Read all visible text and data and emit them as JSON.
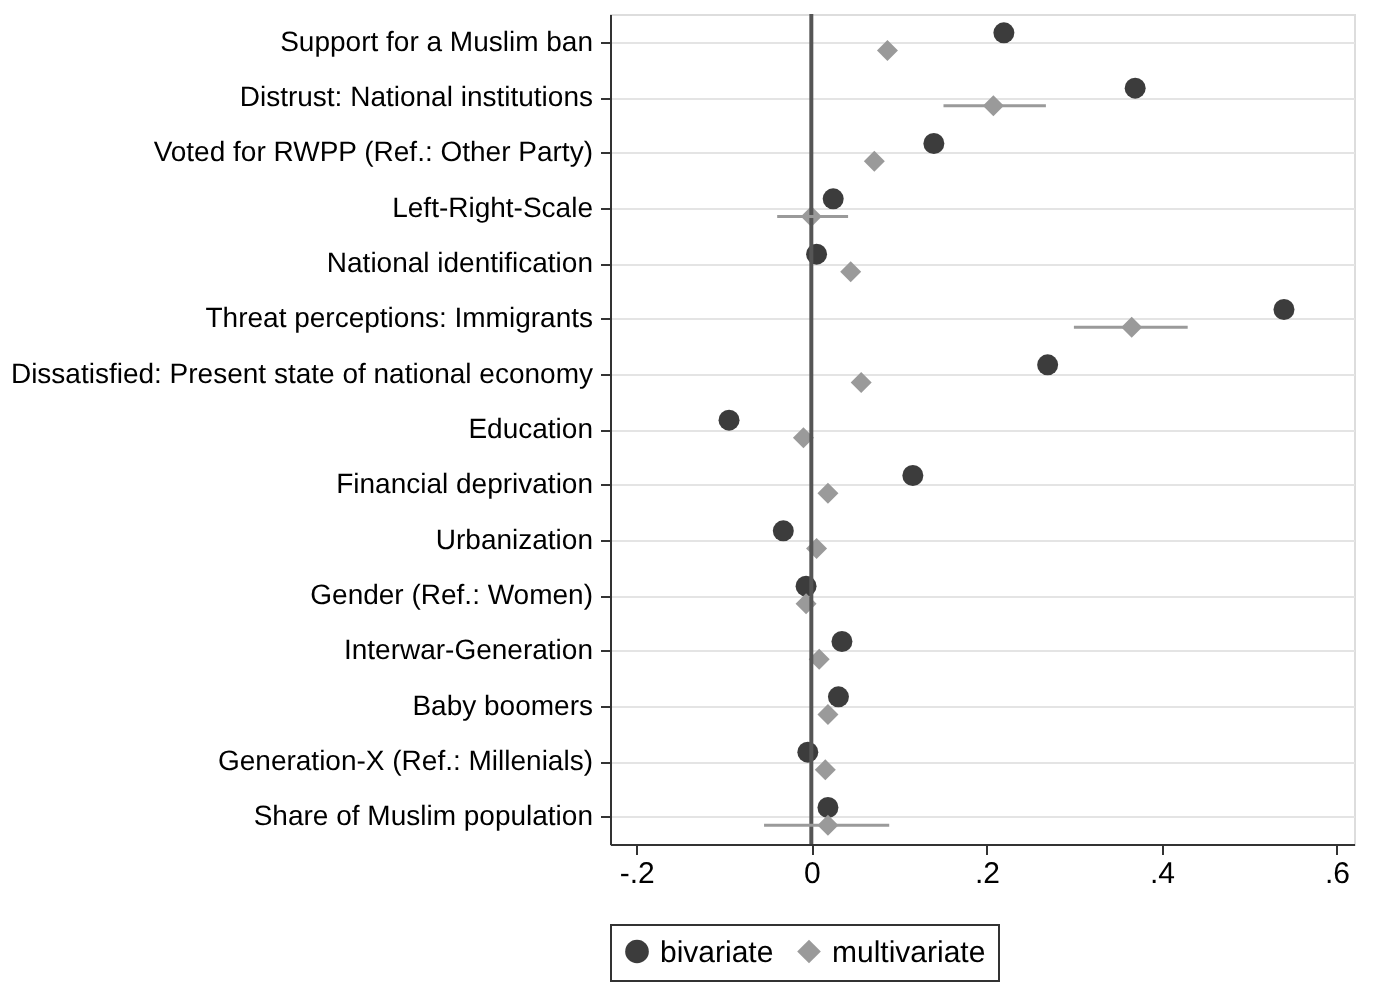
{
  "chart_data": {
    "type": "scatter",
    "categories": [
      "Support for a Muslim ban",
      "Distrust: National institutions",
      "Voted for RWPP (Ref.: Other Party)",
      "Left-Right-Scale",
      "National identification",
      "Threat perceptions: Immigrants",
      "Dissatisfied: Present state of national economy",
      "Education",
      "Financial deprivation",
      "Urbanization",
      "Gender (Ref.: Women)",
      "Interwar-Generation",
      "Baby boomers",
      "Generation-X (Ref.: Millenials)",
      "Share of Muslim population"
    ],
    "series": [
      {
        "name": "bivariate",
        "color": "#3c3c3c",
        "marker": "circle",
        "values": [
          0.22,
          0.37,
          0.14,
          0.025,
          0.006,
          0.54,
          0.27,
          -0.094,
          0.116,
          -0.032,
          -0.006,
          0.035,
          0.031,
          -0.004,
          0.019
        ]
      },
      {
        "name": "multivariate",
        "color": "#9a9a9a",
        "marker": "diamond",
        "values": [
          0.087,
          0.208,
          0.072,
          0.0,
          0.045,
          0.366,
          0.057,
          -0.009,
          0.019,
          0.006,
          -0.006,
          0.009,
          0.019,
          0.016,
          0.019
        ],
        "errors": [
          null,
          [
            0.151,
            0.268
          ],
          null,
          [
            -0.039,
            0.042
          ],
          null,
          [
            0.3,
            0.43
          ],
          null,
          null,
          null,
          null,
          null,
          null,
          null,
          null,
          [
            -0.054,
            0.089
          ]
        ]
      }
    ],
    "xlim": [
      -0.23,
      0.62
    ],
    "xticks": [
      {
        "value": -0.2,
        "label": "-.2"
      },
      {
        "value": 0,
        "label": "0"
      },
      {
        "value": 0.2,
        "label": ".2"
      },
      {
        "value": 0.4,
        "label": ".4"
      },
      {
        "value": 0.6,
        "label": ".6"
      }
    ],
    "ref_lines": [
      {
        "axis": "x",
        "value": 0,
        "color": "#555555"
      }
    ],
    "grid": "y",
    "legend": "bottom",
    "orientation": "horizontal"
  }
}
